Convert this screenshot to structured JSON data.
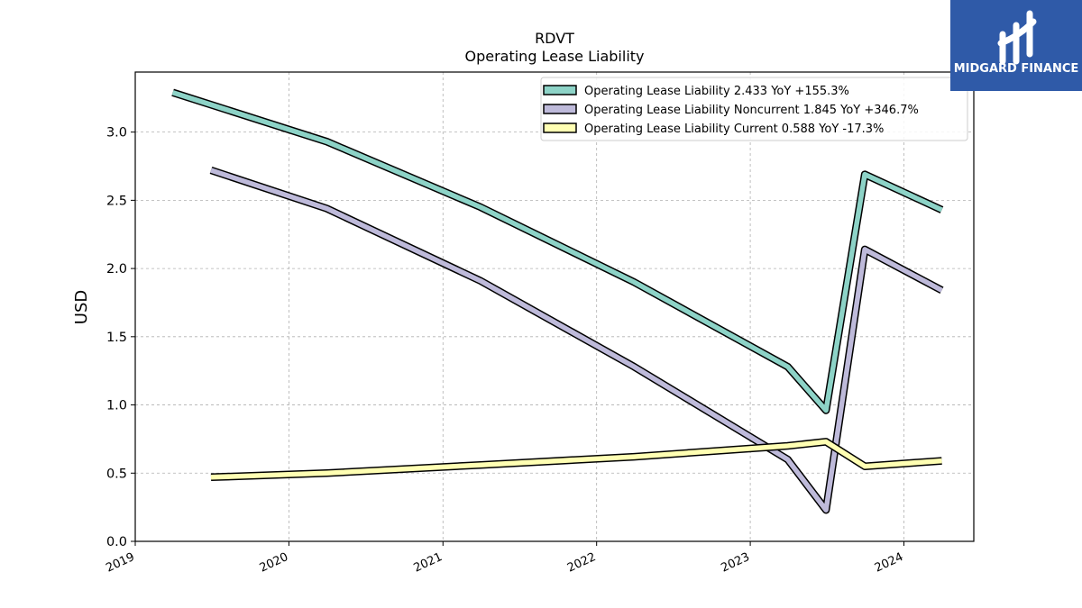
{
  "chart_data": {
    "type": "line",
    "title": "RDVT",
    "subtitle": "Operating Lease Liability",
    "ylabel": "USD",
    "xlabel": "",
    "ylim": [
      0,
      3.44
    ],
    "xlim": [
      "2019-01-01",
      "2024-06-15"
    ],
    "yticks": [
      "0.0",
      "0.5",
      "1.0",
      "1.5",
      "2.0",
      "2.5",
      "3.0"
    ],
    "xticks": [
      "2019",
      "2020",
      "2021",
      "2022",
      "2023",
      "2024"
    ],
    "grid": true,
    "legend_position": "top-right",
    "series": [
      {
        "name": "Operating Lease Liability",
        "legend_label": "Operating Lease Liability  2.433 YoY +155.3%",
        "color": "#8dd3c7",
        "points": [
          [
            "2019-03-31",
            3.29
          ],
          [
            "2020-03-31",
            2.93
          ],
          [
            "2021-03-31",
            2.45
          ],
          [
            "2022-03-31",
            1.9
          ],
          [
            "2023-03-31",
            1.28
          ],
          [
            "2023-06-30",
            0.96
          ],
          [
            "2023-09-30",
            2.69
          ],
          [
            "2024-03-31",
            2.43
          ]
        ]
      },
      {
        "name": "Operating Lease Liability Noncurrent",
        "legend_label": "Operating Lease Liability Noncurrent  1.845 YoY +346.7%",
        "color": "#bebada",
        "points": [
          [
            "2019-06-30",
            2.72
          ],
          [
            "2020-03-31",
            2.44
          ],
          [
            "2021-03-31",
            1.91
          ],
          [
            "2022-03-31",
            1.28
          ],
          [
            "2023-03-31",
            0.6
          ],
          [
            "2023-06-30",
            0.23
          ],
          [
            "2023-09-30",
            2.14
          ],
          [
            "2024-03-31",
            1.84
          ]
        ]
      },
      {
        "name": "Operating Lease Liability Current",
        "legend_label": "Operating Lease Liability Current  0.588 YoY -17.3%",
        "color": "#ffffb3",
        "points": [
          [
            "2019-06-30",
            0.47
          ],
          [
            "2020-03-31",
            0.5
          ],
          [
            "2021-03-31",
            0.56
          ],
          [
            "2022-03-31",
            0.62
          ],
          [
            "2023-03-31",
            0.7
          ],
          [
            "2023-06-30",
            0.73
          ],
          [
            "2023-09-30",
            0.55
          ],
          [
            "2024-03-31",
            0.59
          ]
        ]
      }
    ]
  },
  "logo": {
    "text": "MIDGARD FINANCE",
    "background": "#2f5aa8"
  }
}
